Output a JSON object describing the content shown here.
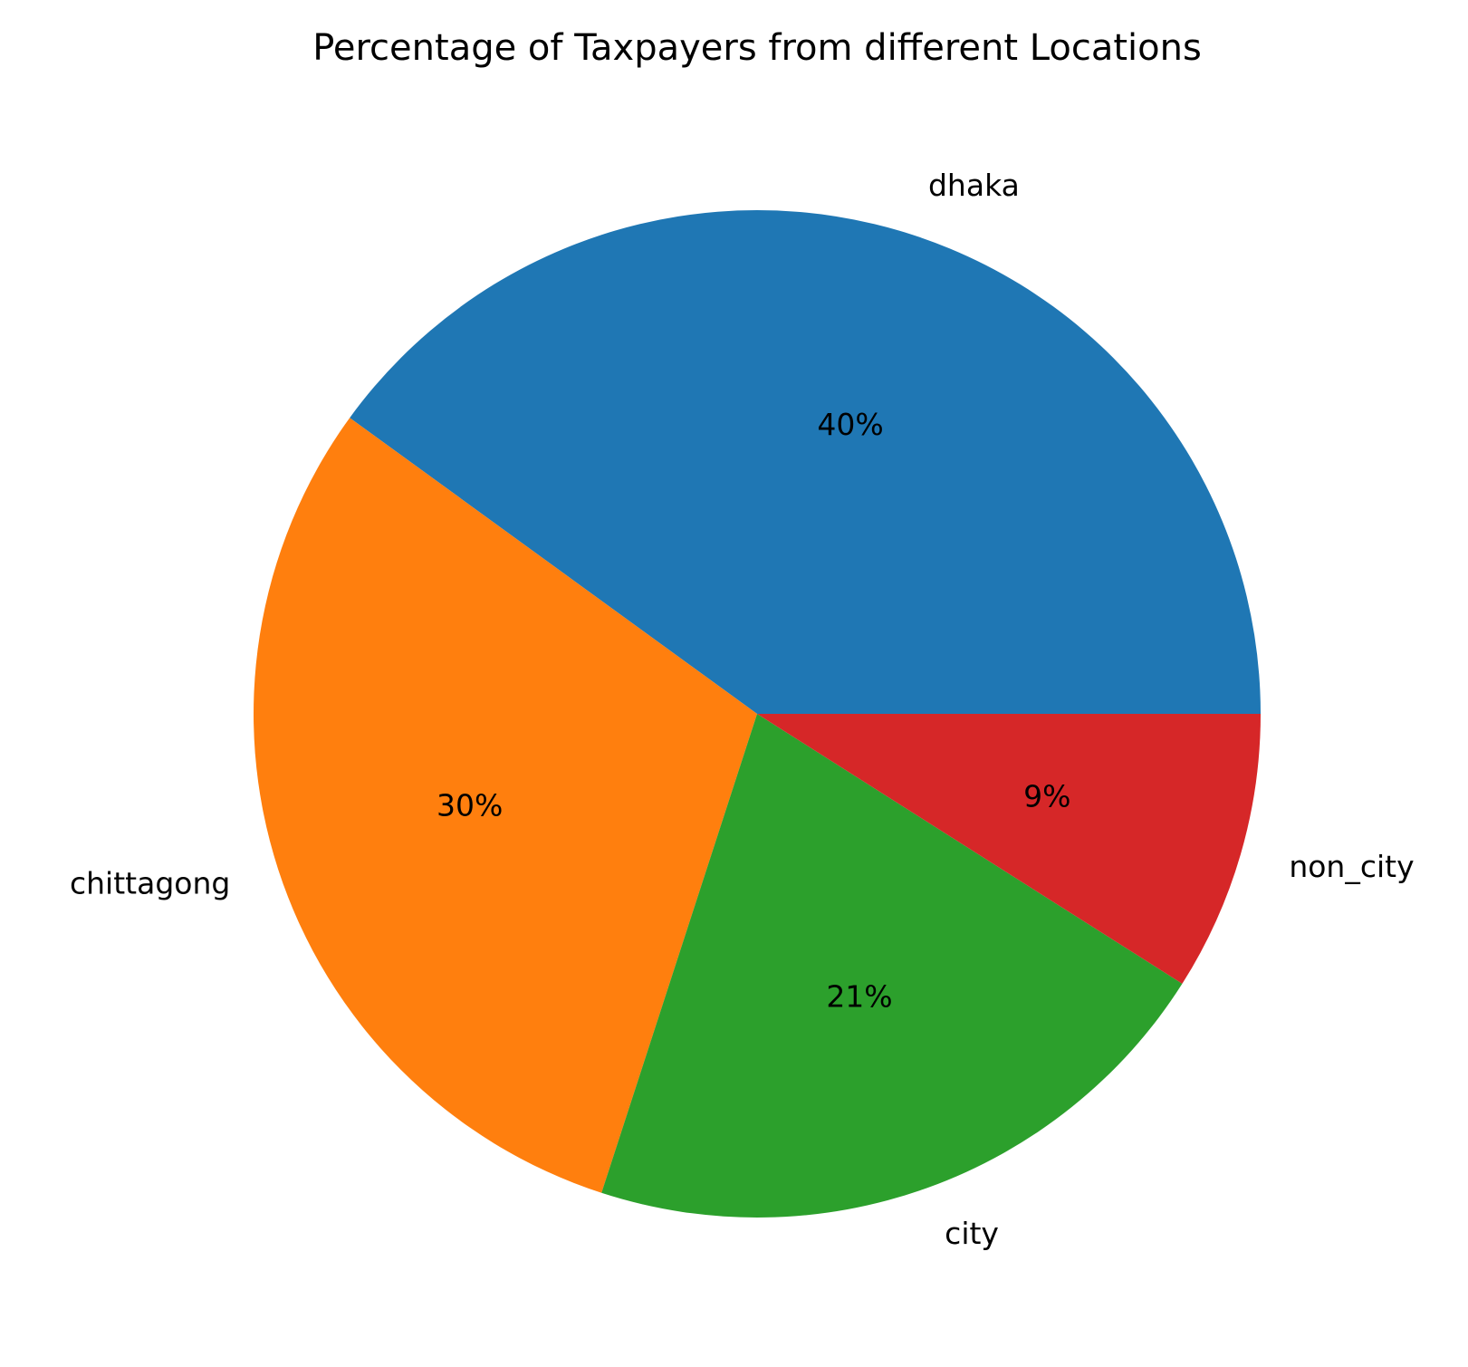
{
  "chart_data": {
    "type": "pie",
    "title": "Percentage of Taxpayers from different Locations",
    "categories": [
      "dhaka",
      "chittagong",
      "city",
      "non_city"
    ],
    "values": [
      40,
      30,
      21,
      9
    ],
    "value_labels": [
      "40%",
      "30%",
      "21%",
      "9%"
    ],
    "colors": [
      "#1f77b4",
      "#ff7f0e",
      "#2ca02c",
      "#d62728"
    ],
    "start_angle_deg": 0,
    "direction": "counterclockwise",
    "legend": "none"
  }
}
